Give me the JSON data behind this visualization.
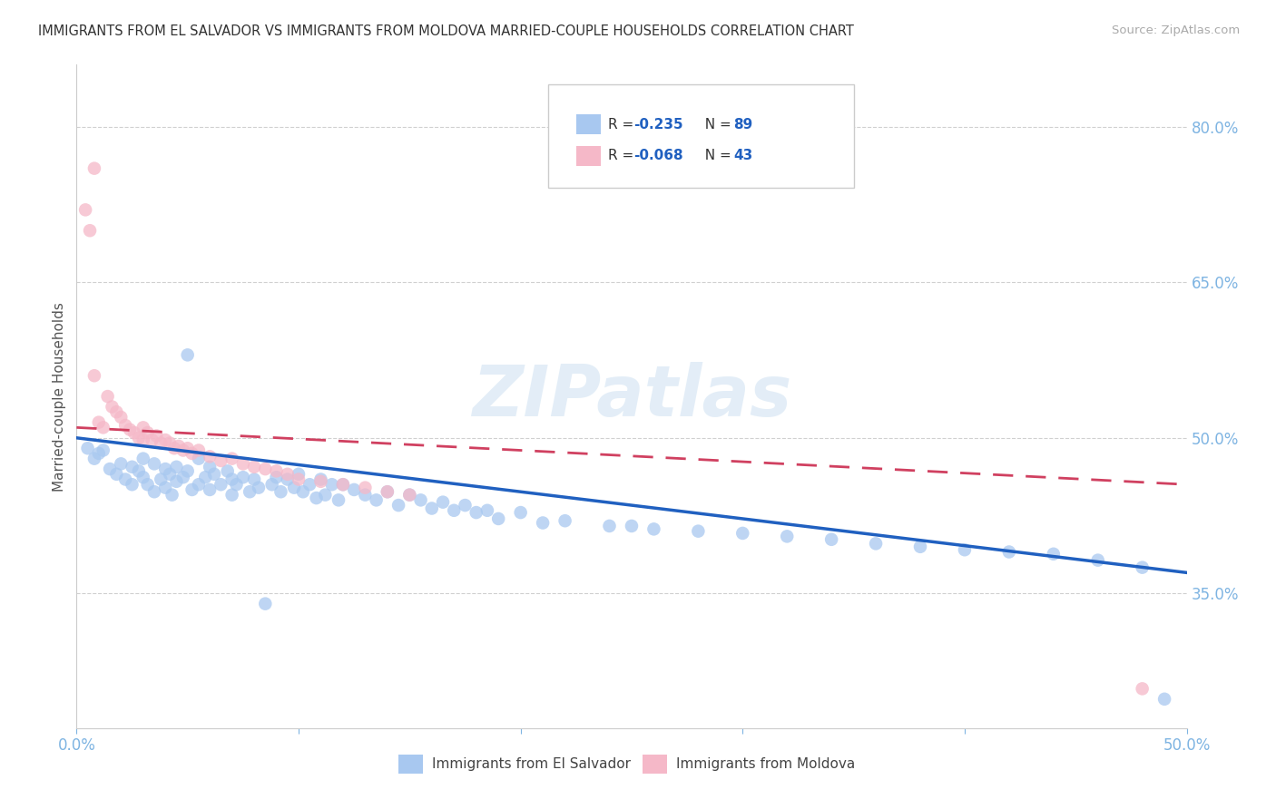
{
  "title": "IMMIGRANTS FROM EL SALVADOR VS IMMIGRANTS FROM MOLDOVA MARRIED-COUPLE HOUSEHOLDS CORRELATION CHART",
  "source": "Source: ZipAtlas.com",
  "ylabel": "Married-couple Households",
  "right_yticks": [
    "80.0%",
    "65.0%",
    "50.0%",
    "35.0%"
  ],
  "right_ytick_vals": [
    0.8,
    0.65,
    0.5,
    0.35
  ],
  "watermark": "ZIPatlas",
  "legend_blue_r": "R = -0.235",
  "legend_blue_n": "N = 89",
  "legend_pink_r": "R = -0.068",
  "legend_pink_n": "N = 43",
  "legend_blue_label": "Immigrants from El Salvador",
  "legend_pink_label": "Immigrants from Moldova",
  "blue_color": "#a8c8f0",
  "pink_color": "#f5b8c8",
  "blue_line_color": "#2060c0",
  "pink_line_color": "#d04060",
  "title_color": "#333333",
  "source_color": "#aaaaaa",
  "axis_label_color": "#7eb4e2",
  "right_tick_color": "#7eb4e2",
  "legend_r_color": "#2060c0",
  "xlim": [
    0.0,
    0.5
  ],
  "ylim": [
    0.22,
    0.86
  ],
  "blue_x": [
    0.005,
    0.008,
    0.01,
    0.012,
    0.015,
    0.018,
    0.02,
    0.022,
    0.025,
    0.025,
    0.028,
    0.03,
    0.03,
    0.032,
    0.035,
    0.035,
    0.038,
    0.04,
    0.04,
    0.042,
    0.043,
    0.045,
    0.045,
    0.048,
    0.05,
    0.05,
    0.052,
    0.055,
    0.055,
    0.058,
    0.06,
    0.06,
    0.062,
    0.065,
    0.068,
    0.07,
    0.07,
    0.072,
    0.075,
    0.078,
    0.08,
    0.082,
    0.085,
    0.088,
    0.09,
    0.092,
    0.095,
    0.098,
    0.1,
    0.102,
    0.105,
    0.108,
    0.11,
    0.112,
    0.115,
    0.118,
    0.12,
    0.125,
    0.13,
    0.135,
    0.14,
    0.145,
    0.15,
    0.155,
    0.16,
    0.165,
    0.17,
    0.175,
    0.18,
    0.185,
    0.19,
    0.2,
    0.21,
    0.22,
    0.24,
    0.25,
    0.26,
    0.28,
    0.3,
    0.32,
    0.34,
    0.36,
    0.38,
    0.4,
    0.42,
    0.44,
    0.46,
    0.48,
    0.49
  ],
  "blue_y": [
    0.49,
    0.48,
    0.485,
    0.488,
    0.47,
    0.465,
    0.475,
    0.46,
    0.472,
    0.455,
    0.468,
    0.48,
    0.462,
    0.455,
    0.475,
    0.448,
    0.46,
    0.47,
    0.452,
    0.465,
    0.445,
    0.472,
    0.458,
    0.462,
    0.58,
    0.468,
    0.45,
    0.48,
    0.455,
    0.462,
    0.472,
    0.45,
    0.465,
    0.455,
    0.468,
    0.46,
    0.445,
    0.455,
    0.462,
    0.448,
    0.46,
    0.452,
    0.34,
    0.455,
    0.462,
    0.448,
    0.46,
    0.452,
    0.465,
    0.448,
    0.455,
    0.442,
    0.46,
    0.445,
    0.455,
    0.44,
    0.455,
    0.45,
    0.445,
    0.44,
    0.448,
    0.435,
    0.445,
    0.44,
    0.432,
    0.438,
    0.43,
    0.435,
    0.428,
    0.43,
    0.422,
    0.428,
    0.418,
    0.42,
    0.415,
    0.415,
    0.412,
    0.41,
    0.408,
    0.405,
    0.402,
    0.398,
    0.395,
    0.392,
    0.39,
    0.388,
    0.382,
    0.375,
    0.248
  ],
  "pink_x": [
    0.004,
    0.006,
    0.008,
    0.01,
    0.012,
    0.014,
    0.016,
    0.018,
    0.02,
    0.022,
    0.024,
    0.026,
    0.028,
    0.03,
    0.03,
    0.032,
    0.034,
    0.036,
    0.038,
    0.04,
    0.042,
    0.044,
    0.046,
    0.048,
    0.05,
    0.052,
    0.055,
    0.06,
    0.065,
    0.07,
    0.075,
    0.08,
    0.085,
    0.09,
    0.095,
    0.1,
    0.11,
    0.12,
    0.13,
    0.14,
    0.15,
    0.008,
    0.48
  ],
  "pink_y": [
    0.72,
    0.7,
    0.56,
    0.515,
    0.51,
    0.54,
    0.53,
    0.525,
    0.52,
    0.512,
    0.508,
    0.505,
    0.5,
    0.51,
    0.498,
    0.505,
    0.498,
    0.502,
    0.495,
    0.498,
    0.495,
    0.49,
    0.492,
    0.488,
    0.49,
    0.485,
    0.488,
    0.482,
    0.478,
    0.48,
    0.475,
    0.472,
    0.47,
    0.468,
    0.465,
    0.46,
    0.458,
    0.455,
    0.452,
    0.448,
    0.445,
    0.76,
    0.258
  ]
}
